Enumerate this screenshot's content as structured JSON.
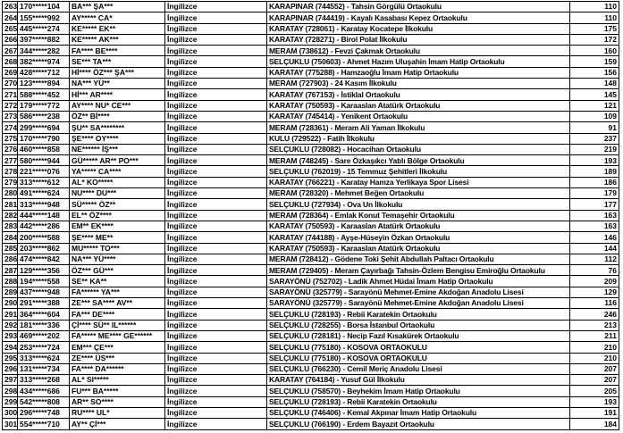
{
  "table": {
    "columns": [
      "row_number",
      "masked_id",
      "masked_name",
      "branch",
      "school",
      "score"
    ],
    "branch_label": "İngilizce",
    "rows": [
      [
        "263",
        "170*****104",
        "BA*** ŞA***",
        "İngilizce",
        "KARAPINAR (744552) - Tahsin Görgülü Ortaokulu",
        "110"
      ],
      [
        "264",
        "155*****992",
        "AY***** CA*",
        "İngilizce",
        "KARAPINAR (744419) - Kayalı Kasabası Kepez Ortaokulu",
        "110"
      ],
      [
        "265",
        "445*****274",
        "KE***** EK**",
        "İngilizce",
        "KARATAY (728061) - Karatay Kocatepe İlkokulu",
        "175"
      ],
      [
        "266",
        "397*****882",
        "KE***** AK***",
        "İngilizce",
        "KARATAY (728271) - Birol Polat İlkokulu",
        "172"
      ],
      [
        "267",
        "344*****282",
        "FA**** BE****",
        "İngilizce",
        "MERAM (738612) - Fevzi Çakmak Ortaokulu",
        "160"
      ],
      [
        "268",
        "382*****974",
        "SE*** TA***",
        "İngilizce",
        "SELÇUKLU (750603) - Ahmet Hazım Uluşahin İmam Hatip Ortaokulu",
        "159"
      ],
      [
        "269",
        "428*****712",
        "Hİ**** ÖZ*** ŞA***",
        "İngilizce",
        "KARATAY (775288) - Hamzaoğlu İmam Hatip Ortaokulu",
        "156"
      ],
      [
        "270",
        "123*****894",
        "NA*** YÜ**",
        "İngilizce",
        "MERAM (727903) - 24 Kasım İlkokulu",
        "148"
      ],
      [
        "271",
        "588*****452",
        "Hİ*** AR****",
        "İngilizce",
        "KARATAY (767153) - İstiklal Ortaokulu",
        "145"
      ],
      [
        "272",
        "179*****772",
        "AY**** NU* CE***",
        "İngilizce",
        "KARATAY (750593) - Karaaslan Atatürk Ortaokulu",
        "121"
      ],
      [
        "273",
        "586*****238",
        "ÖZ** Bİ****",
        "İngilizce",
        "KARATAY (745414) - Yenikent Ortaokulu",
        "109"
      ],
      [
        "274",
        "299*****694",
        "ŞU** SA********",
        "İngilizce",
        "MERAM (728361) - Meram Ali Yaman İlkokulu",
        "91"
      ],
      [
        "275",
        "170*****790",
        "ŞE**** OY****",
        "İngilizce",
        "KULU (729522) - Fatih İlkokulu",
        "237"
      ],
      [
        "276",
        "460*****858",
        "NE****** İŞ***",
        "İngilizce",
        "SELÇUKLU (728082) - Hocacihan Ortaokulu",
        "219"
      ],
      [
        "277",
        "580*****944",
        "GÜ***** AR** PO***",
        "İngilizce",
        "MERAM (748245) - Sare Özkaşıkcı Yatılı Bölge Ortaokulu",
        "193"
      ],
      [
        "278",
        "221*****076",
        "YA***** CA****",
        "İngilizce",
        "SELÇUKLU (762019) - 15 Temmuz Şehitleri İlkokulu",
        "189"
      ],
      [
        "279",
        "313*****612",
        "AL* KO*****",
        "İngilizce",
        "KARATAY (766221) - Karatay Hamza Yerlikaya Spor Lisesi",
        "186"
      ],
      [
        "280",
        "491*****624",
        "NU**** DU***",
        "İngilizce",
        "MERAM (728320) - Mehmet Beğen Ortaokulu",
        "179"
      ],
      [
        "281",
        "313*****948",
        "SÜ***** ÖZ**",
        "İngilizce",
        "SELÇUKLU (727934) - Ova Un İlkokulu",
        "177"
      ],
      [
        "282",
        "444*****148",
        "EL** ÖZ****",
        "İngilizce",
        "MERAM (728364) - Emlak Konut Temaşehir Ortaokulu",
        "163"
      ],
      [
        "283",
        "442*****286",
        "EM** EK****",
        "İngilizce",
        "KARATAY (750593) - Karaaslan Atatürk Ortaokulu",
        "163"
      ],
      [
        "284",
        "200*****588",
        "ŞE**** ME**",
        "İngilizce",
        "KARATAY (744188) - Ayşe-Hüseyin Özkan Ortaokulu",
        "146"
      ],
      [
        "285",
        "203*****862",
        "MU***** TO***",
        "İngilizce",
        "KARATAY (750593) - Karaaslan Atatürk Ortaokulu",
        "144"
      ],
      [
        "286",
        "474*****842",
        "NA*** YÜ****",
        "İngilizce",
        "MERAM (728412) - Gödene Toki Şehit Abdullah Paltacı Ortaokulu",
        "112"
      ],
      [
        "287",
        "129*****356",
        "ÖZ*** GÜ***",
        "İngilizce",
        "MERAM (729405) - Meram Çayırbağı Tahsin-Özlem Bengisu Emiroğlu Ortaokulu",
        "76"
      ],
      [
        "288",
        "194*****558",
        "SE** KA**",
        "İngilizce",
        "SARAYÖNÜ (752702) - Ladik Ahmet Hüdai İmam Hatip Ortaokulu",
        "209"
      ],
      [
        "289",
        "437*****948",
        "FA****** YA***",
        "İngilizce",
        "SARAYÖNÜ (325779) - Sarayönü Mehmet-Emine Akdoğan Anadolu Lisesi",
        "129"
      ],
      [
        "290",
        "291*****388",
        "ZE*** SA**** AV**",
        "İngilizce",
        "SARAYÖNÜ (325779) - Sarayönü Mehmet-Emine Akdoğan Anadolu Lisesi",
        "116"
      ],
      [
        "291",
        "364*****604",
        "FA*** DE****",
        "İngilizce",
        "SELÇUKLU (728193) - Rebii Karatekin Ortaokulu",
        "246"
      ],
      [
        "292",
        "181*****336",
        "Çİ**** SÜ** IL******",
        "İngilizce",
        "SELÇUKLU (728255) - Borsa İstanbul Ortaokulu",
        "213"
      ],
      [
        "293",
        "469*****202",
        "FA***** ME**** GE******",
        "İngilizce",
        "SELÇUKLU (728181) - Necip Fazıl Kısakürek Ortaokulu",
        "211"
      ],
      [
        "294",
        "253*****724",
        "EM*** ÇE***",
        "İngilizce",
        "SELÇUKLU (775180) - KOSOVA ORTAOKULU",
        "210"
      ],
      [
        "295",
        "313*****624",
        "ZE**** ÜS***",
        "İngilizce",
        "SELÇUKLU (775180) - KOSOVA ORTAOKULU",
        "210"
      ],
      [
        "296",
        "131*****734",
        "FA**** DA******",
        "İngilizce",
        "SELÇUKLU (766230) - Cemil Meriç Anadolu Lisesi",
        "207"
      ],
      [
        "297",
        "313*****268",
        "AL* SI*****",
        "İngilizce",
        "KARATAY (764184) - Yusuf Gül İlkokulu",
        "207"
      ],
      [
        "298",
        "434*****686",
        "FU*** BA*****",
        "İngilizce",
        "SELÇUKLU (758570) - Beyhekim İmam Hatip Ortaokulu",
        "205"
      ],
      [
        "299",
        "542*****808",
        "AR** SO****",
        "İngilizce",
        "SELÇUKLU (728193) - Rebii Karatekin Ortaokulu",
        "193"
      ],
      [
        "300",
        "296*****748",
        "RU**** UL*",
        "İngilizce",
        "SELÇUKLU (746406) - Kemal Akpınar İmam Hatip Ortaokulu",
        "191"
      ],
      [
        "301",
        "554*****710",
        "AY** Çİ***",
        "İngilizce",
        "SELÇUKLU (766190) - Erdem Bayazıt Ortaokulu",
        "184"
      ]
    ],
    "colors": {
      "text": "#000000",
      "border": "#000000",
      "background": "#ffffff"
    }
  }
}
